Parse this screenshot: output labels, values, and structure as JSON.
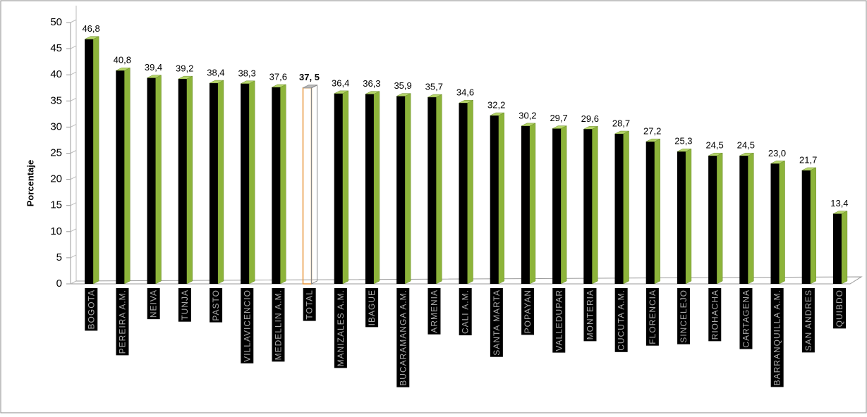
{
  "chart_data": {
    "type": "bar3d",
    "y_label": "Porcentaje",
    "categories": [
      "BOGOTA",
      "PEREIRA A.M.",
      "NEIVA",
      "TUNJA",
      "PASTO",
      "VILLAVICENCIO",
      "MEDELLIN A.M.",
      "TOTAL",
      "MANIZALES A.M.",
      "IBAGUE",
      "BUCARAMANGA A.M.",
      "ARMENIA",
      "CALI A.M.",
      "SANTA MARTA",
      "POPAYAN",
      "VALLEDUPAR",
      "MONTERIA",
      "CUCUTA A.M.",
      "FLORENCIA",
      "SINCELEJO",
      "RIOHACHA",
      "CARTAGENA",
      "BARRANQUILLA A.M.",
      "SAN ANDRES",
      "QUIBDO"
    ],
    "values": [
      46.8,
      40.8,
      39.4,
      39.2,
      38.4,
      38.3,
      37.6,
      37.5,
      36.4,
      36.3,
      35.9,
      35.7,
      34.6,
      32.2,
      30.2,
      29.7,
      29.6,
      28.7,
      27.2,
      25.3,
      24.5,
      24.5,
      23.0,
      21.7,
      13.4
    ],
    "value_labels": [
      "46,8",
      "40,8",
      "39,4",
      "39,2",
      "38,4",
      "38,3",
      "37,6",
      "37, 5",
      "36,4",
      "36,3",
      "35,9",
      "35,7",
      "34,6",
      "32,2",
      "30,2",
      "29,7",
      "29,6",
      "28,7",
      "27,2",
      "25,3",
      "24,5",
      "24,5",
      "23,0",
      "21,7",
      "13,4"
    ],
    "color": "#000000",
    "side_color": "#8db43a",
    "highlight_category": "TOTAL",
    "ylim": [
      0,
      50
    ],
    "yticks": [
      0,
      5,
      10,
      15,
      20,
      25,
      30,
      35,
      40,
      45,
      50
    ]
  }
}
